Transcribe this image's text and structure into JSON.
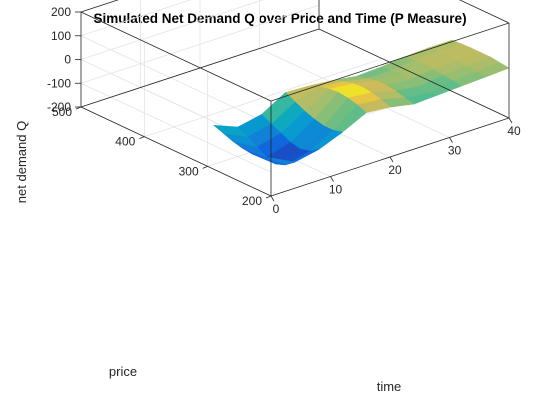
{
  "chart_data": {
    "type": "surface3d",
    "title": "Simulated Net Demand Q over Price and Time (P Measure)",
    "xlabel": "time",
    "ylabel": "price",
    "zlabel": "net demand Q",
    "xlim": [
      0,
      40
    ],
    "ylim": [
      200,
      500
    ],
    "zlim": [
      -200,
      200
    ],
    "xticks": [
      0,
      10,
      20,
      30,
      40
    ],
    "yticks": [
      200,
      300,
      400,
      500
    ],
    "zticks": [
      -200,
      -100,
      0,
      100,
      200
    ],
    "colormap": "parula",
    "grid": true,
    "time": [
      0,
      4,
      8,
      12,
      16,
      20,
      24,
      28,
      32,
      36,
      40
    ],
    "price": [
      200,
      215,
      230,
      245,
      260,
      275,
      290
    ],
    "Q": [
      [
        -40,
        -55,
        -60,
        -55,
        -45,
        -30,
        -15
      ],
      [
        -90,
        -120,
        -135,
        -125,
        -100,
        -75,
        -55
      ],
      [
        -70,
        -95,
        -105,
        -95,
        -75,
        -55,
        -35
      ],
      [
        -30,
        -40,
        -40,
        -30,
        -15,
        5,
        25
      ],
      [
        20,
        35,
        45,
        50,
        45,
        35,
        20
      ],
      [
        10,
        25,
        35,
        40,
        35,
        25,
        10
      ],
      [
        -10,
        0,
        10,
        15,
        15,
        5,
        -5
      ],
      [
        -5,
        -15,
        -5,
        5,
        10,
        5,
        0
      ],
      [
        0,
        5,
        10,
        15,
        20,
        15,
        10
      ],
      [
        5,
        10,
        15,
        20,
        22,
        20,
        15
      ],
      [
        10,
        15,
        20,
        20,
        20,
        18,
        15
      ]
    ]
  }
}
